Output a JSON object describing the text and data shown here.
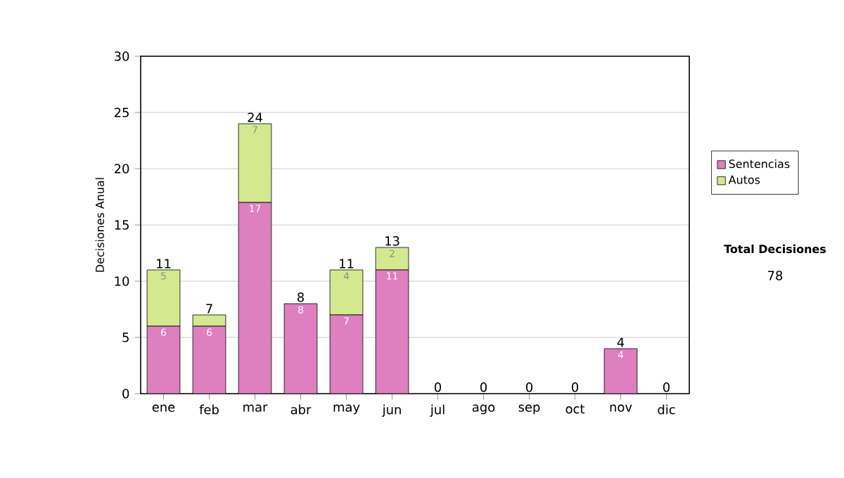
{
  "chart_data": {
    "type": "bar",
    "stacked": true,
    "ylabel": "Decisiones Anual",
    "categories": [
      "ene",
      "feb",
      "mar",
      "abr",
      "may",
      "jun",
      "jul",
      "ago",
      "sep",
      "oct",
      "nov",
      "dic"
    ],
    "series": [
      {
        "name": "Sentencias",
        "color": "#de7fbf",
        "values": [
          6,
          6,
          17,
          8,
          7,
          11,
          0,
          0,
          0,
          0,
          4,
          0
        ],
        "value_labels": [
          "6",
          "6",
          "17",
          "8",
          "7",
          "11",
          null,
          null,
          null,
          null,
          "4",
          null
        ]
      },
      {
        "name": "Autos",
        "color": "#d4e98f",
        "values": [
          5,
          1,
          7,
          0,
          4,
          2,
          0,
          0,
          0,
          0,
          0,
          0
        ],
        "value_labels": [
          "5",
          null,
          "7",
          null,
          "4",
          "2",
          null,
          null,
          null,
          null,
          null,
          null
        ]
      }
    ],
    "totals": [
      "11",
      "7",
      "24",
      "8",
      "11",
      "13",
      "0",
      "0",
      "0",
      "0",
      "4",
      "0"
    ],
    "ylim": [
      0,
      30
    ],
    "yticks": [
      0,
      5,
      10,
      15,
      20,
      25,
      30
    ],
    "grid": "y",
    "legend": "right",
    "annotations": [
      "Total Decisiones",
      "78"
    ]
  }
}
